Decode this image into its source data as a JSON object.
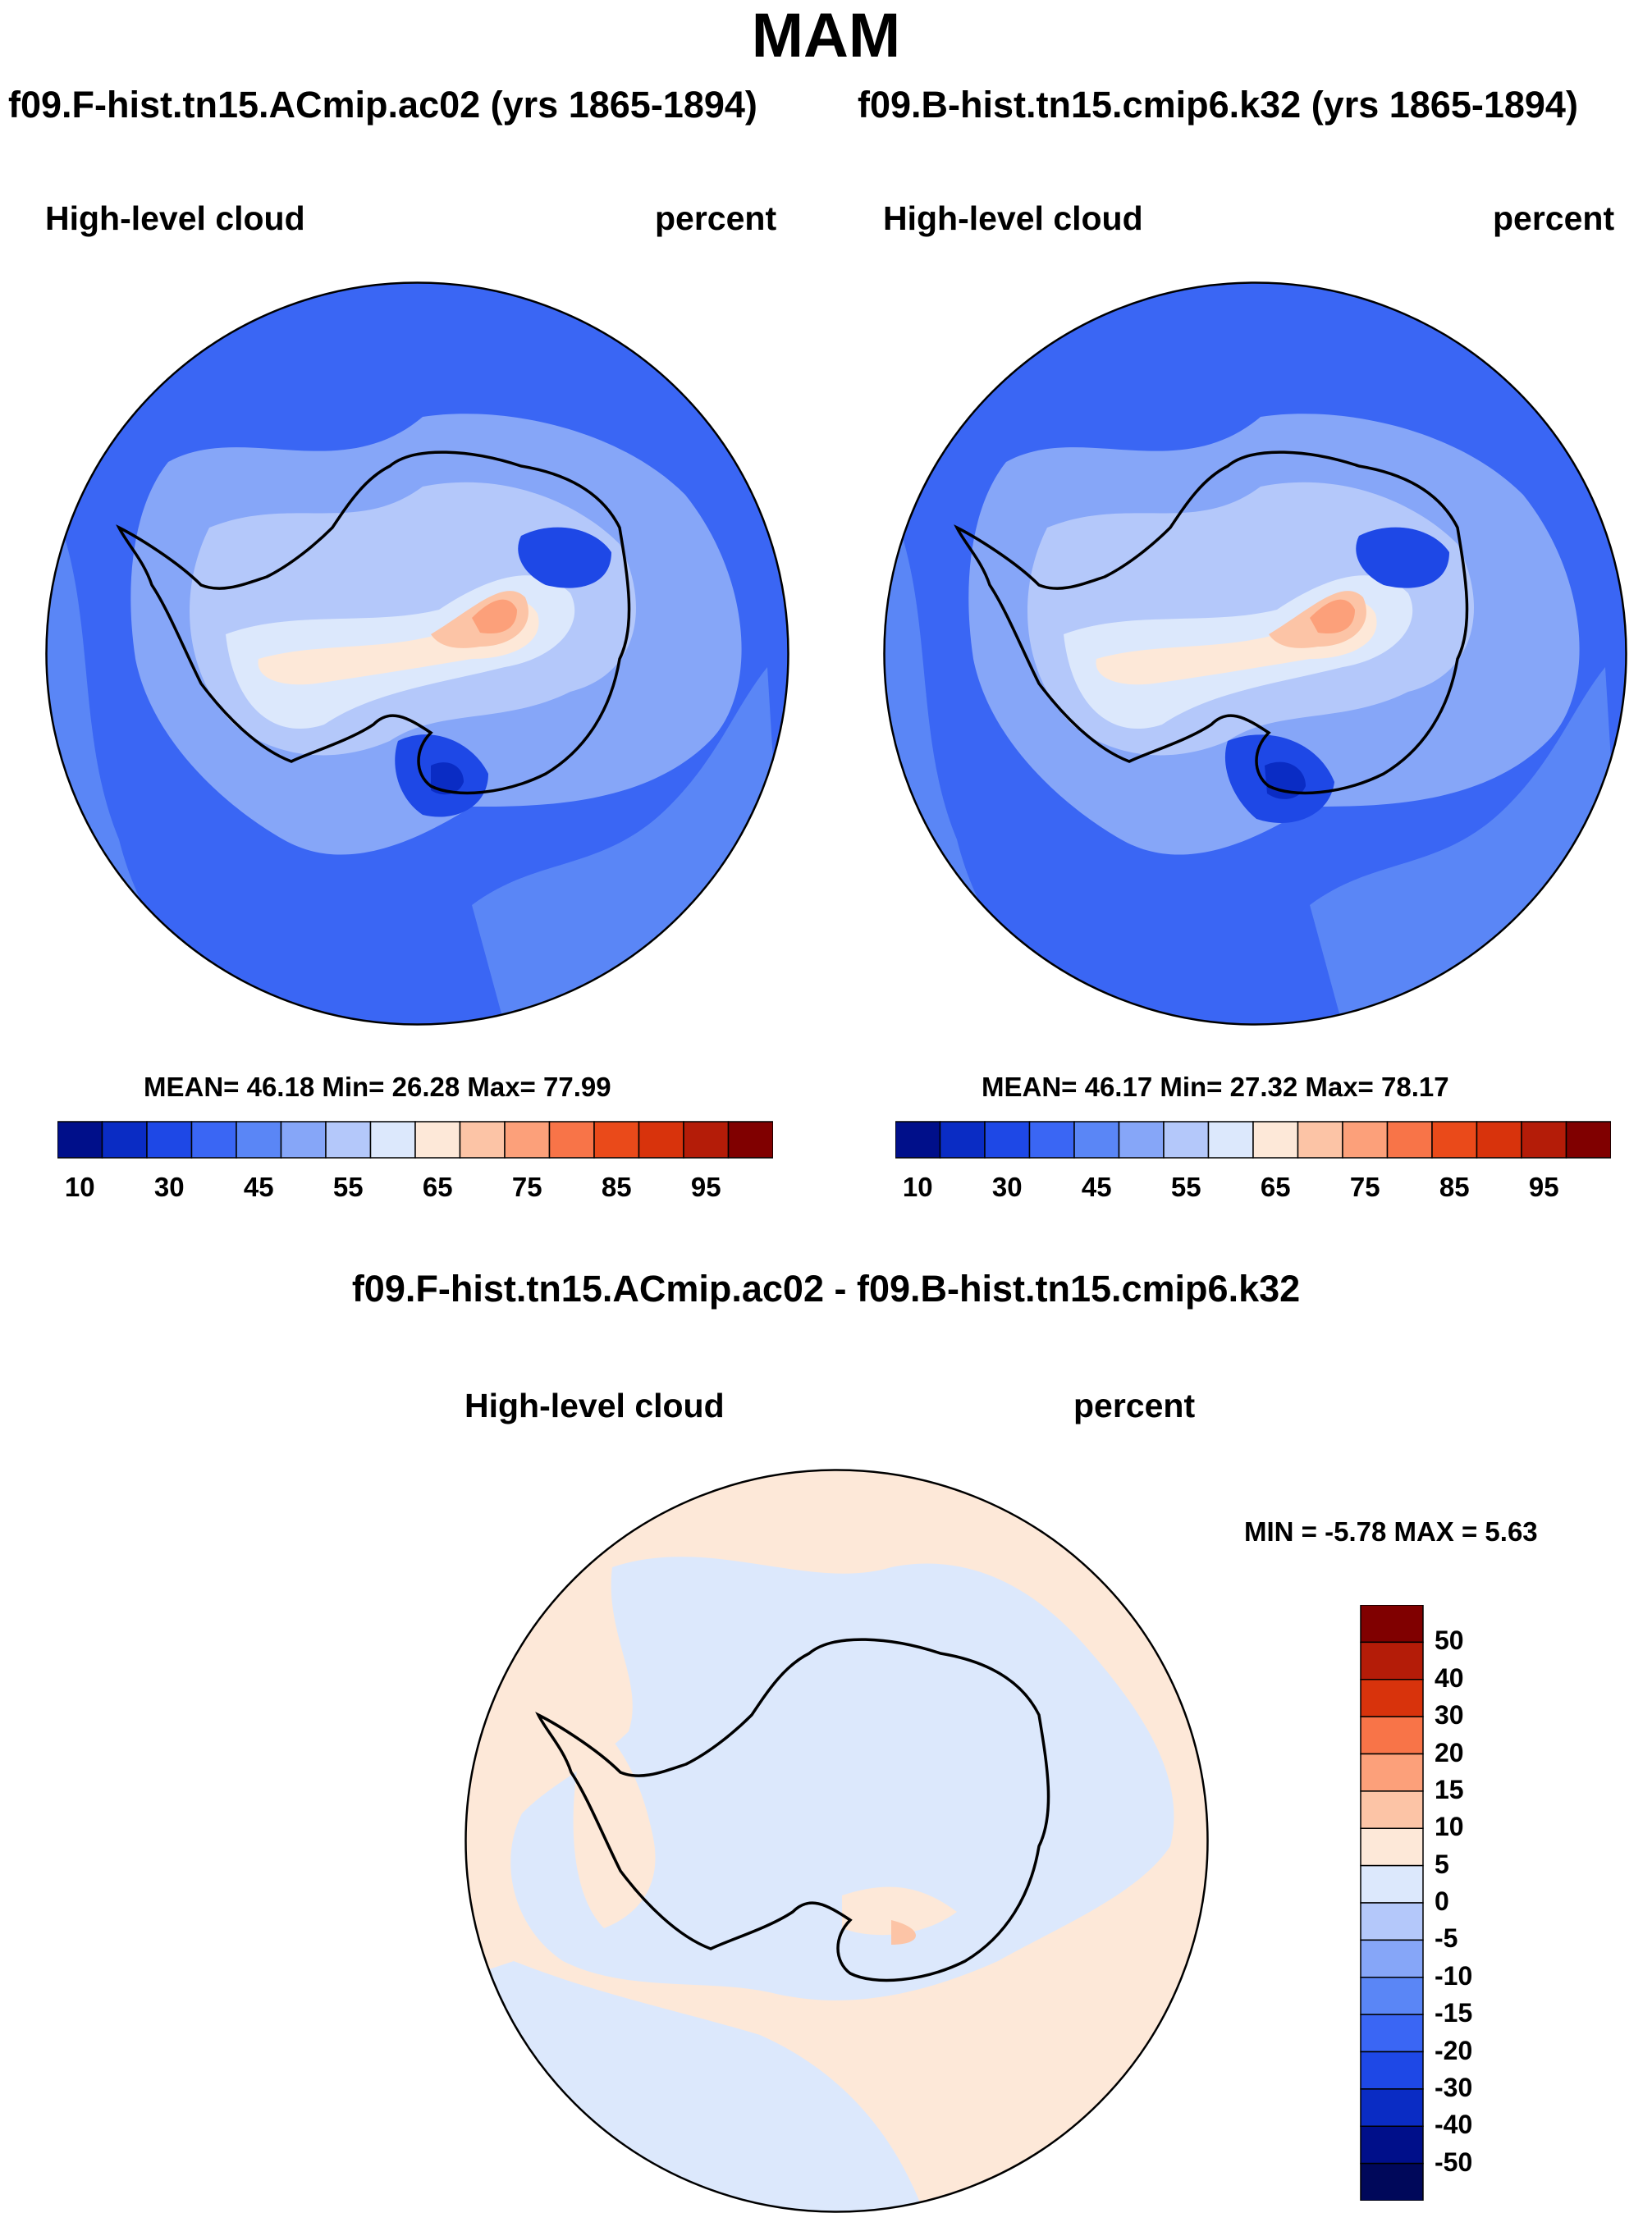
{
  "figure": {
    "season": "MAM"
  },
  "panels": [
    {
      "case": "f09.F-hist.tn15.ACmip.ac02 (yrs 1865-1894)",
      "variable": "High-level cloud",
      "units": "percent",
      "stats": "MEAN=  46.18  Min=  26.28  Max=  77.99"
    },
    {
      "case": "f09.B-hist.tn15.cmip6.k32 (yrs 1865-1894)",
      "variable": "High-level cloud",
      "units": "percent",
      "stats": "MEAN=  46.17  Min=  27.32  Max=  78.17"
    }
  ],
  "diff_panel": {
    "title": "f09.F-hist.tn15.ACmip.ac02 - f09.B-hist.tn15.cmip6.k32",
    "variable": "High-level cloud",
    "units": "percent",
    "stats": "MIN =  -5.78 MAX =   5.63"
  },
  "colorbar": {
    "ticks": [
      "10",
      "30",
      "45",
      "55",
      "65",
      "75",
      "85",
      "95"
    ],
    "colors": [
      "#000f8a",
      "#0a2cc4",
      "#1e48e6",
      "#3a66f4",
      "#5a86f6",
      "#86a6f8",
      "#b4c8fa",
      "#dce8fc",
      "#fde8d8",
      "#fcc4a6",
      "#fca07a",
      "#f87448",
      "#ea4a1a",
      "#d8330c",
      "#b41c08",
      "#800000"
    ]
  },
  "diff_colorbar": {
    "ticks": [
      "50",
      "40",
      "30",
      "20",
      "15",
      "10",
      "5",
      "0",
      "-5",
      "-10",
      "-15",
      "-20",
      "-30",
      "-40",
      "-50"
    ],
    "colors": [
      "#800000",
      "#b41c08",
      "#d8330c",
      "#f87448",
      "#fca07a",
      "#fcc4a6",
      "#fde8d8",
      "#dce8fc",
      "#b4c8fa",
      "#86a6f8",
      "#5a86f6",
      "#3a66f4",
      "#1e48e6",
      "#0a2cc4",
      "#000f8a",
      "#00085a"
    ]
  },
  "chart_data": [
    {
      "type": "heatmap",
      "title": "f09.F-hist.tn15.ACmip.ac02 (yrs 1865-1894)",
      "variable": "High-level cloud",
      "units": "percent",
      "projection": "south-polar stereographic",
      "mean": 46.18,
      "min": 26.28,
      "max": 77.99,
      "levels": [
        10,
        20,
        30,
        40,
        45,
        50,
        55,
        60,
        65,
        70,
        75,
        80,
        85,
        90,
        95
      ]
    },
    {
      "type": "heatmap",
      "title": "f09.B-hist.tn15.cmip6.k32 (yrs 1865-1894)",
      "variable": "High-level cloud",
      "units": "percent",
      "projection": "south-polar stereographic",
      "mean": 46.17,
      "min": 27.32,
      "max": 78.17,
      "levels": [
        10,
        20,
        30,
        40,
        45,
        50,
        55,
        60,
        65,
        70,
        75,
        80,
        85,
        90,
        95
      ]
    },
    {
      "type": "heatmap",
      "title": "f09.F-hist.tn15.ACmip.ac02 - f09.B-hist.tn15.cmip6.k32",
      "variable": "High-level cloud",
      "units": "percent",
      "projection": "south-polar stereographic",
      "min": -5.78,
      "max": 5.63,
      "levels": [
        -50,
        -40,
        -30,
        -20,
        -15,
        -10,
        -5,
        0,
        5,
        10,
        15,
        20,
        30,
        40,
        50
      ]
    }
  ]
}
